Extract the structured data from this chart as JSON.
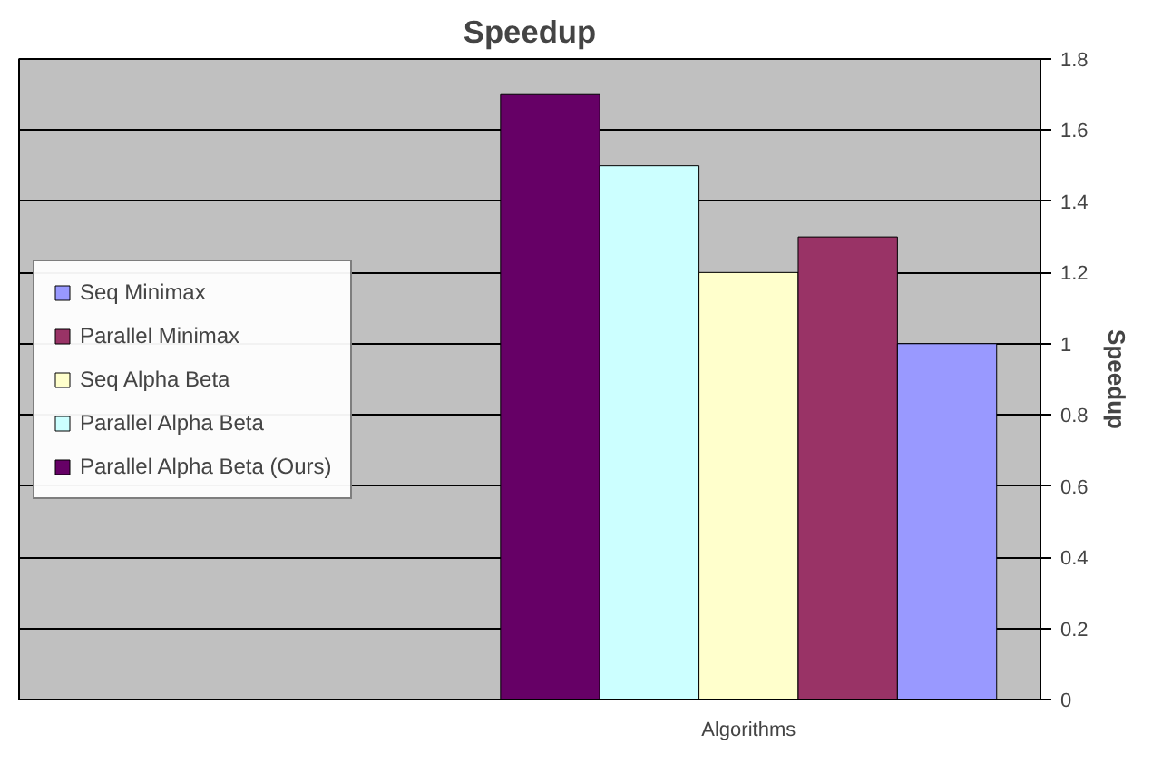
{
  "chart_data": {
    "type": "bar",
    "title": "Speedup",
    "ylabel": "Speedup",
    "categories": [
      "Algorithms"
    ],
    "series": [
      {
        "name": "Parallel Alpha Beta (Ours)",
        "color": "#660066",
        "values": [
          1.7
        ]
      },
      {
        "name": "Parallel Alpha Beta",
        "color": "#ccffff",
        "values": [
          1.5
        ]
      },
      {
        "name": "Seq Alpha Beta",
        "color": "#ffffcc",
        "values": [
          1.2
        ]
      },
      {
        "name": "Parallel Minimax",
        "color": "#993366",
        "values": [
          1.3
        ]
      },
      {
        "name": "Seq Minimax",
        "color": "#9999ff",
        "values": [
          1.0
        ]
      }
    ],
    "ylim": [
      0,
      1.8
    ],
    "yticks": [
      0,
      0.2,
      0.4,
      0.6,
      0.8,
      1,
      1.2,
      1.4,
      1.6,
      1.8
    ],
    "grid": "y",
    "legend": "left"
  }
}
